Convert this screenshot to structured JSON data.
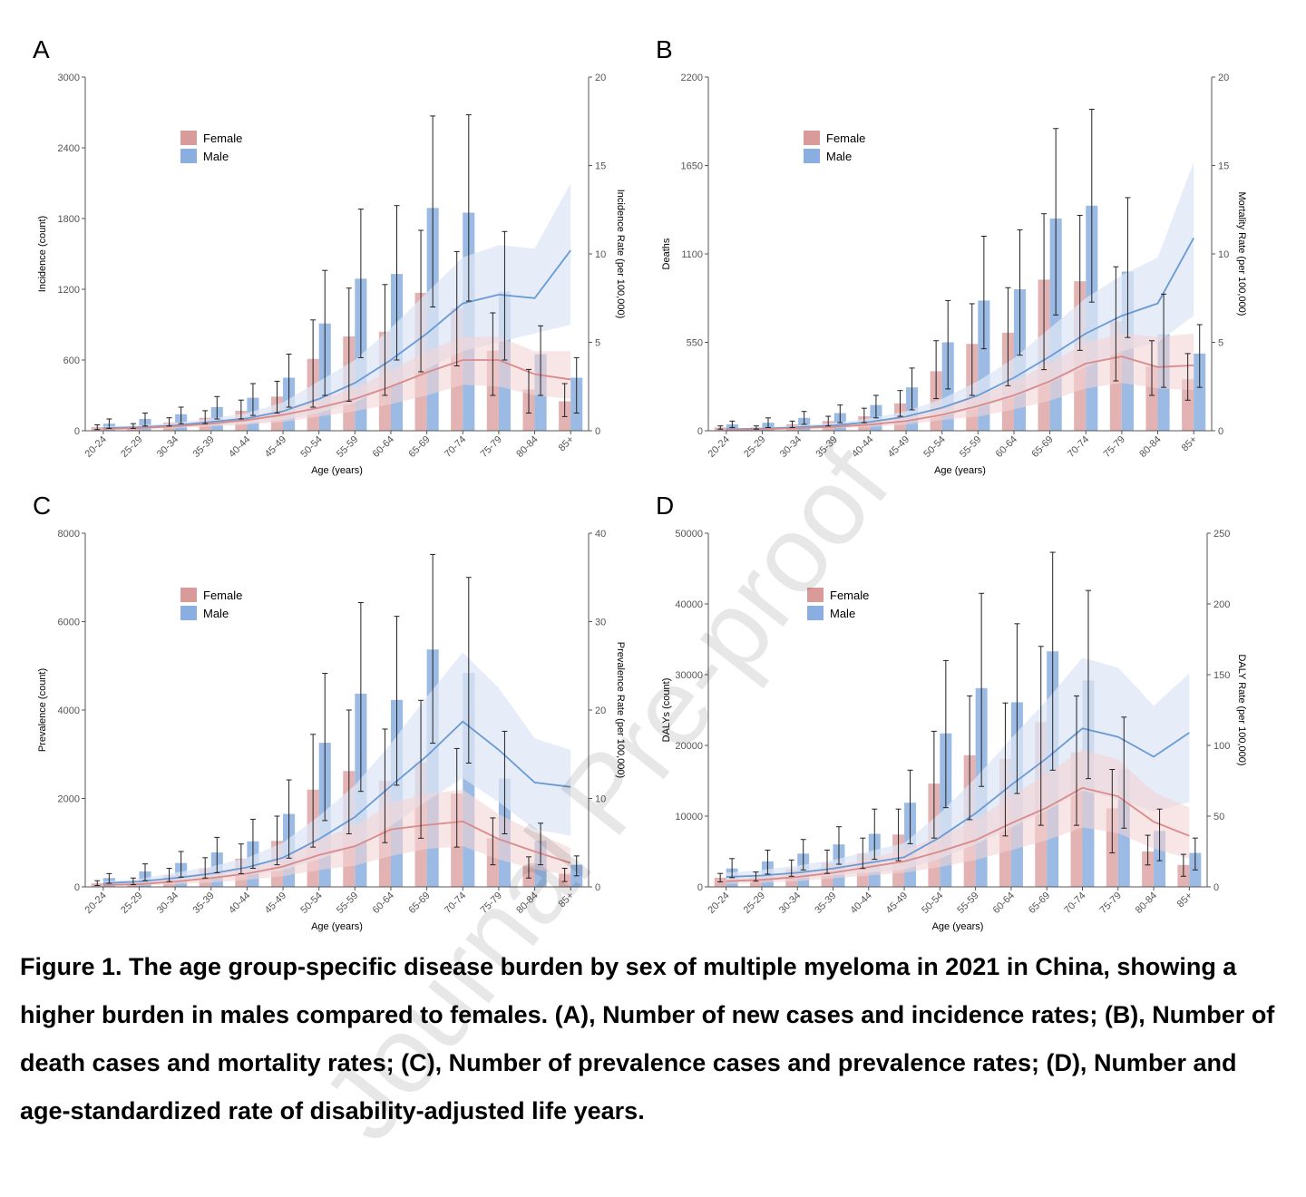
{
  "caption": "Figure 1. The age group-specific disease burden by sex of multiple myeloma in 2021 in China, showing a higher burden in males compared to females. (A), Number of new cases and incidence rates; (B), Number of death cases and mortality rates; (C), Number of prevalence cases and prevalence rates; (D), Number and age-standardized rate of disability-adjusted life years.",
  "watermark": "Journal Pre-proof",
  "colors": {
    "female": "#d99a9a",
    "male": "#8aaedf",
    "female_line": "#d98a8a",
    "male_line": "#6a9ad3",
    "female_band": "#f3d3d3",
    "male_band": "#dde6f6"
  },
  "chart_data": [
    {
      "panel": "A",
      "type": "bar",
      "categories": [
        "20-24",
        "25-29",
        "30-34",
        "35-39",
        "40-44",
        "45-49",
        "50-54",
        "55-59",
        "60-64",
        "65-69",
        "70-74",
        "75-79",
        "80-84",
        "85+"
      ],
      "xlabel": "Age (years)",
      "ylabel": "Incidence (count)",
      "y2label": "Incidence Rate (per 100,000)",
      "ylim": [
        0,
        3000
      ],
      "yticks": [
        0,
        600,
        1200,
        1800,
        2400,
        3000
      ],
      "y2lim": [
        0,
        20
      ],
      "y2ticks": [
        0,
        5,
        10,
        15,
        20
      ],
      "legend": [
        "Female",
        "Male"
      ],
      "series": [
        {
          "name": "Female",
          "kind": "count",
          "values": [
            30,
            40,
            70,
            110,
            170,
            290,
            610,
            800,
            840,
            1170,
            1040,
            680,
            350,
            250
          ],
          "low": [
            10,
            20,
            40,
            60,
            100,
            150,
            200,
            250,
            300,
            500,
            550,
            300,
            150,
            120
          ],
          "high": [
            50,
            60,
            110,
            170,
            260,
            420,
            940,
            1210,
            1240,
            1700,
            1520,
            1000,
            520,
            400
          ]
        },
        {
          "name": "Male",
          "kind": "count",
          "values": [
            60,
            100,
            140,
            200,
            280,
            450,
            910,
            1290,
            1330,
            1890,
            1850,
            1180,
            650,
            450
          ],
          "low": [
            20,
            40,
            60,
            100,
            130,
            200,
            300,
            620,
            600,
            1050,
            1100,
            600,
            300,
            150
          ],
          "high": [
            100,
            150,
            200,
            290,
            400,
            650,
            1360,
            1880,
            1910,
            2670,
            2680,
            1690,
            890,
            620
          ]
        },
        {
          "name": "Female",
          "kind": "rate",
          "values": [
            0.1,
            0.15,
            0.25,
            0.4,
            0.6,
            0.9,
            1.3,
            1.8,
            2.5,
            3.3,
            4.0,
            4.0,
            3.2,
            2.9
          ],
          "low": [
            0.05,
            0.08,
            0.15,
            0.25,
            0.35,
            0.5,
            0.8,
            1.1,
            1.5,
            2.0,
            2.6,
            2.5,
            2.0,
            1.8
          ],
          "high": [
            0.2,
            0.25,
            0.4,
            0.55,
            0.8,
            1.2,
            1.8,
            2.4,
            3.4,
            4.5,
            5.3,
            5.3,
            4.5,
            4.5
          ]
        },
        {
          "name": "Male",
          "kind": "rate",
          "values": [
            0.15,
            0.2,
            0.3,
            0.5,
            0.7,
            1.1,
            1.8,
            2.7,
            4.0,
            5.5,
            7.2,
            7.7,
            7.5,
            10.2
          ],
          "low": [
            0.08,
            0.12,
            0.2,
            0.3,
            0.4,
            0.6,
            1.0,
            1.6,
            2.5,
            3.5,
            4.5,
            5.0,
            5.5,
            6.0
          ],
          "high": [
            0.25,
            0.3,
            0.45,
            0.7,
            1.0,
            1.6,
            2.8,
            4.0,
            5.8,
            7.8,
            9.8,
            10.5,
            10.3,
            14.0
          ]
        }
      ]
    },
    {
      "panel": "B",
      "type": "bar",
      "categories": [
        "20-24",
        "25-29",
        "30-34",
        "35-39",
        "40-44",
        "45-49",
        "50-54",
        "55-59",
        "60-64",
        "65-69",
        "70-74",
        "75-79",
        "80-84",
        "85+"
      ],
      "xlabel": "Age (years)",
      "ylabel": "Deaths",
      "y2label": "Mortality Rate (per 100,000)",
      "ylim": [
        0,
        2200
      ],
      "yticks": [
        0,
        550,
        1100,
        1650,
        2200
      ],
      "y2lim": [
        0,
        20
      ],
      "y2ticks": [
        0,
        5,
        10,
        15,
        20
      ],
      "legend": [
        "Female",
        "Male"
      ],
      "series": [
        {
          "name": "Female",
          "kind": "count",
          "values": [
            20,
            20,
            40,
            60,
            90,
            170,
            370,
            540,
            610,
            940,
            930,
            680,
            400,
            320
          ],
          "low": [
            10,
            10,
            20,
            30,
            50,
            90,
            200,
            220,
            280,
            380,
            500,
            310,
            220,
            190
          ],
          "high": [
            30,
            30,
            60,
            90,
            140,
            250,
            560,
            790,
            890,
            1350,
            1340,
            1020,
            560,
            480
          ]
        },
        {
          "name": "Male",
          "kind": "count",
          "values": [
            40,
            50,
            80,
            110,
            160,
            270,
            550,
            810,
            880,
            1320,
            1400,
            990,
            600,
            480
          ],
          "low": [
            20,
            20,
            40,
            50,
            80,
            130,
            260,
            510,
            470,
            720,
            800,
            580,
            270,
            270
          ],
          "high": [
            60,
            80,
            120,
            160,
            220,
            390,
            810,
            1210,
            1250,
            1880,
            2000,
            1450,
            850,
            660
          ]
        },
        {
          "name": "Female",
          "kind": "rate",
          "values": [
            0.05,
            0.08,
            0.15,
            0.22,
            0.35,
            0.55,
            0.9,
            1.4,
            2.0,
            2.8,
            3.8,
            4.2,
            3.6,
            3.7
          ],
          "low": [
            0.03,
            0.05,
            0.1,
            0.15,
            0.2,
            0.35,
            0.6,
            0.8,
            1.2,
            1.7,
            2.4,
            2.7,
            2.4,
            2.3
          ],
          "high": [
            0.08,
            0.12,
            0.2,
            0.3,
            0.5,
            0.8,
            1.3,
            2.0,
            2.8,
            3.8,
            5.0,
            5.5,
            5.3,
            5.5
          ]
        },
        {
          "name": "Male",
          "kind": "rate",
          "values": [
            0.08,
            0.12,
            0.2,
            0.3,
            0.5,
            0.8,
            1.3,
            2.0,
            3.0,
            4.2,
            5.5,
            6.5,
            7.2,
            10.9
          ],
          "low": [
            0.05,
            0.08,
            0.12,
            0.2,
            0.3,
            0.5,
            0.8,
            1.3,
            1.9,
            2.7,
            3.6,
            4.5,
            5.0,
            6.5
          ],
          "high": [
            0.12,
            0.18,
            0.3,
            0.45,
            0.7,
            1.1,
            1.8,
            2.8,
            4.1,
            5.8,
            7.5,
            8.8,
            9.8,
            15.2
          ]
        }
      ]
    },
    {
      "panel": "C",
      "type": "bar",
      "categories": [
        "20-24",
        "25-29",
        "30-34",
        "35-39",
        "40-44",
        "45-49",
        "50-54",
        "55-59",
        "60-64",
        "65-69",
        "70-74",
        "75-79",
        "80-84",
        "85+"
      ],
      "xlabel": "Age (years)",
      "ylabel": "Prevalence (count)",
      "y2label": "Prevalence Rate (per 100,000)",
      "ylim": [
        0,
        8000
      ],
      "yticks": [
        0,
        2000,
        4000,
        6000,
        8000
      ],
      "y2lim": [
        0,
        40
      ],
      "y2ticks": [
        0,
        10,
        20,
        30,
        40
      ],
      "legend": [
        "Female",
        "Male"
      ],
      "series": [
        {
          "name": "Female",
          "kind": "count",
          "values": [
            80,
            120,
            260,
            420,
            640,
            1040,
            2200,
            2620,
            2400,
            2820,
            2110,
            1100,
            480,
            300
          ],
          "low": [
            30,
            50,
            120,
            200,
            300,
            500,
            900,
            1200,
            1000,
            1100,
            900,
            500,
            200,
            120
          ],
          "high": [
            140,
            200,
            420,
            660,
            970,
            1600,
            3450,
            4000,
            3570,
            4220,
            3130,
            1560,
            680,
            420
          ]
        },
        {
          "name": "Male",
          "kind": "count",
          "values": [
            200,
            350,
            540,
            780,
            1030,
            1650,
            3260,
            4370,
            4230,
            5370,
            4840,
            2450,
            1040,
            500
          ],
          "low": [
            80,
            140,
            220,
            320,
            420,
            650,
            1500,
            2160,
            2300,
            3250,
            2800,
            1200,
            500,
            250
          ],
          "high": [
            300,
            520,
            800,
            1120,
            1530,
            2420,
            4830,
            6430,
            6120,
            7520,
            7000,
            3520,
            1440,
            700
          ]
        },
        {
          "name": "Female",
          "kind": "rate",
          "values": [
            0.2,
            0.3,
            0.6,
            1.0,
            1.5,
            2.3,
            3.6,
            4.6,
            6.5,
            7.0,
            7.4,
            5.4,
            4.0,
            2.7
          ],
          "low": [
            0.1,
            0.15,
            0.3,
            0.5,
            0.8,
            1.2,
            1.9,
            2.4,
            3.5,
            4.3,
            4.6,
            3.1,
            2.0,
            1.3
          ],
          "high": [
            0.35,
            0.5,
            0.9,
            1.5,
            2.2,
            3.4,
            5.4,
            6.8,
            9.5,
            10.5,
            11.0,
            8.2,
            6.2,
            4.4
          ]
        },
        {
          "name": "Male",
          "kind": "rate",
          "values": [
            0.4,
            0.6,
            1.0,
            1.5,
            2.2,
            3.3,
            5.4,
            7.9,
            11.4,
            14.8,
            18.7,
            15.5,
            11.8,
            11.3
          ],
          "low": [
            0.2,
            0.3,
            0.5,
            0.9,
            1.3,
            1.9,
            3.1,
            4.6,
            6.9,
            9.7,
            12.3,
            9.6,
            6.5,
            5.8
          ],
          "high": [
            0.6,
            0.9,
            1.6,
            2.3,
            3.3,
            5.0,
            8.0,
            11.5,
            16.2,
            21.5,
            26.5,
            22.5,
            16.8,
            15.5
          ]
        }
      ]
    },
    {
      "panel": "D",
      "type": "bar",
      "categories": [
        "20-24",
        "25-29",
        "30-34",
        "35-39",
        "40-44",
        "45-49",
        "50-54",
        "55-59",
        "60-64",
        "65-69",
        "70-74",
        "75-79",
        "80-84",
        "85+"
      ],
      "xlabel": "Age (years)",
      "ylabel": "DALYs (count)",
      "y2label": "DALY Rate (per 100,000)",
      "ylim": [
        0,
        50000
      ],
      "yticks": [
        0,
        10000,
        20000,
        30000,
        40000,
        50000
      ],
      "y2lim": [
        0,
        250
      ],
      "y2ticks": [
        0,
        50,
        100,
        150,
        200,
        250
      ],
      "legend": [
        "Female",
        "Male"
      ],
      "series": [
        {
          "name": "Female",
          "kind": "count",
          "values": [
            1300,
            1500,
            2500,
            3400,
            4700,
            7400,
            14600,
            18600,
            18100,
            23300,
            19000,
            11100,
            5000,
            3100
          ],
          "low": [
            700,
            800,
            1500,
            1900,
            2600,
            3700,
            6900,
            9500,
            7200,
            8700,
            8700,
            4800,
            3100,
            1500
          ],
          "high": [
            1900,
            2100,
            3800,
            5200,
            6900,
            11000,
            22000,
            27000,
            26000,
            34000,
            27000,
            16600,
            7300,
            4600
          ]
        },
        {
          "name": "Male",
          "kind": "count",
          "values": [
            2600,
            3600,
            4700,
            6000,
            7500,
            11900,
            21700,
            28100,
            26100,
            33300,
            29200,
            16600,
            7900,
            4800
          ],
          "low": [
            1300,
            1800,
            2400,
            3200,
            3900,
            6100,
            11200,
            14200,
            13200,
            16500,
            15300,
            8300,
            3700,
            2400
          ],
          "high": [
            4000,
            5200,
            6700,
            8500,
            11000,
            16500,
            32000,
            41500,
            37200,
            47300,
            41900,
            24000,
            11000,
            6900
          ]
        },
        {
          "name": "Female",
          "kind": "rate",
          "values": [
            4,
            5,
            7,
            10,
            14,
            18,
            25,
            33,
            45,
            56,
            70,
            64,
            46,
            36
          ],
          "low": [
            2,
            3,
            4,
            6,
            8,
            10,
            14,
            19,
            26,
            33,
            42,
            38,
            27,
            20
          ],
          "high": [
            6,
            7,
            10,
            14,
            20,
            26,
            36,
            47,
            64,
            80,
            97,
            90,
            67,
            56
          ]
        },
        {
          "name": "Male",
          "kind": "rate",
          "values": [
            7,
            8,
            10,
            13,
            17,
            21,
            35,
            52,
            72,
            91,
            112,
            106,
            92,
            109
          ],
          "low": [
            4,
            5,
            6,
            8,
            10,
            12,
            20,
            30,
            42,
            54,
            68,
            62,
            53,
            60
          ],
          "high": [
            10,
            12,
            15,
            19,
            25,
            31,
            52,
            77,
            105,
            132,
            162,
            155,
            128,
            151
          ]
        }
      ]
    }
  ]
}
